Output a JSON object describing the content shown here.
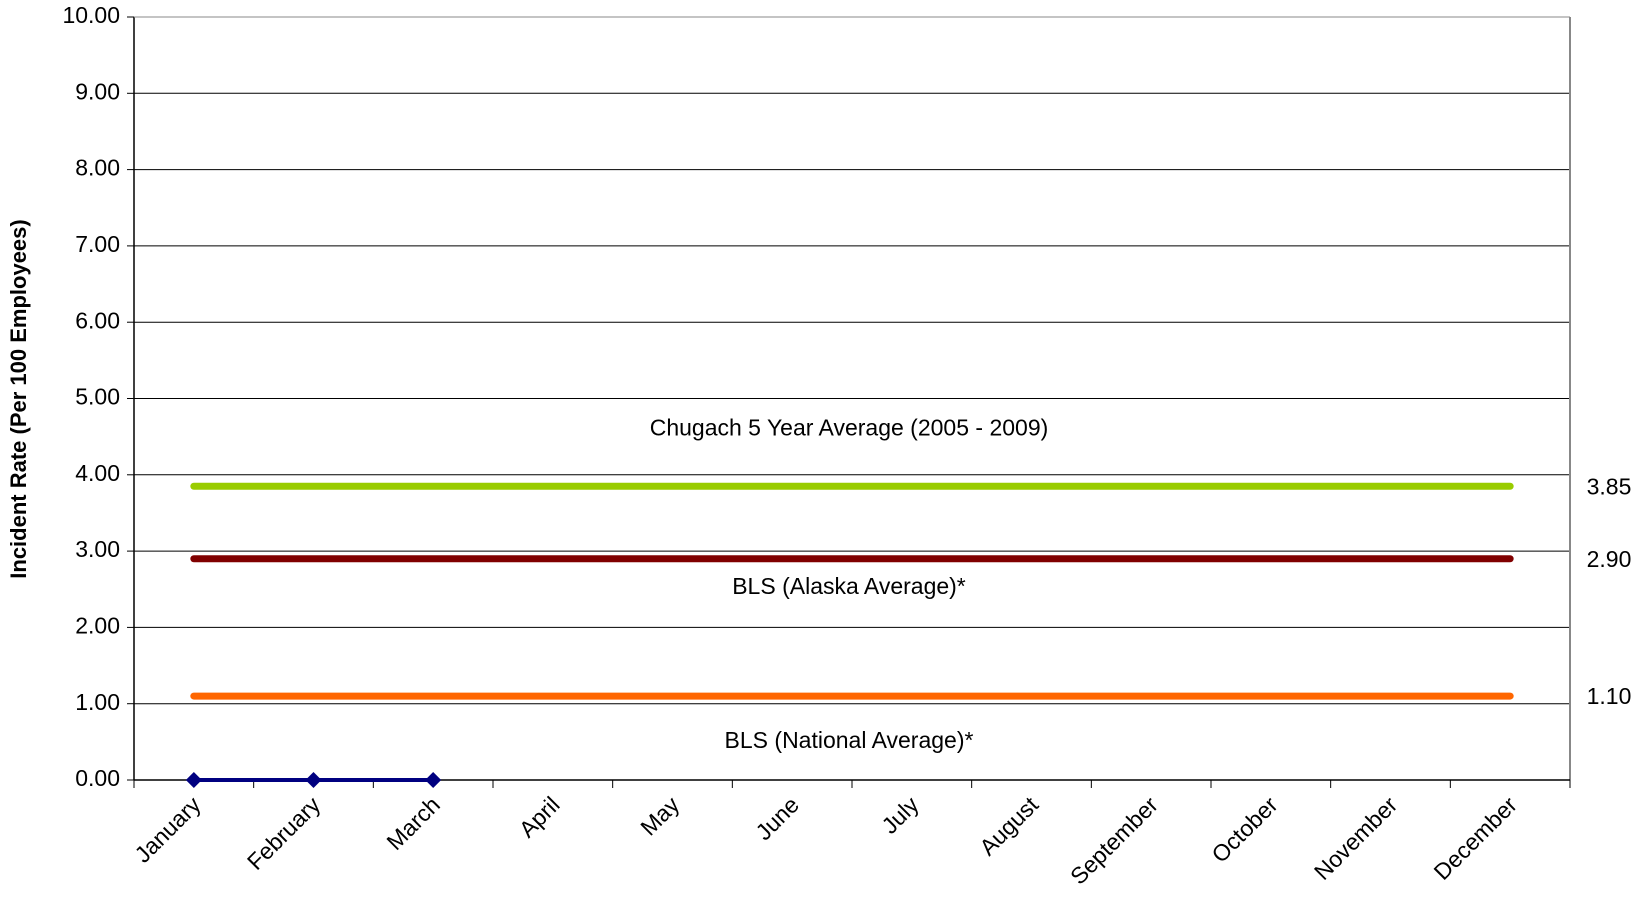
{
  "chart_data": {
    "type": "line",
    "y_label": "Incident Rate (Per 100 Employees)",
    "categories": [
      "January",
      "February",
      "March",
      "April",
      "May",
      "June",
      "July",
      "August",
      "September",
      "October",
      "November",
      "December"
    ],
    "ylim": [
      0,
      10
    ],
    "yticks": [
      {
        "value": 0,
        "label": "0.00"
      },
      {
        "value": 1,
        "label": "1.00"
      },
      {
        "value": 2,
        "label": "2.00"
      },
      {
        "value": 3,
        "label": "3.00"
      },
      {
        "value": 4,
        "label": "4.00"
      },
      {
        "value": 5,
        "label": "5.00"
      },
      {
        "value": 6,
        "label": "6.00"
      },
      {
        "value": 7,
        "label": "7.00"
      },
      {
        "value": 8,
        "label": "8.00"
      },
      {
        "value": 9,
        "label": "9.00"
      },
      {
        "value": 10,
        "label": "10.00"
      }
    ],
    "grid": true,
    "series": [
      {
        "name": "Chugach 5 Year Average (2005 - 2009)",
        "color": "#99cc00",
        "value_label": "3.85",
        "values": [
          3.85,
          3.85,
          3.85,
          3.85,
          3.85,
          3.85,
          3.85,
          3.85,
          3.85,
          3.85,
          3.85,
          3.85
        ]
      },
      {
        "name": "BLS (Alaska Average)*",
        "color": "#800000",
        "value_label": "2.90",
        "values": [
          2.9,
          2.9,
          2.9,
          2.9,
          2.9,
          2.9,
          2.9,
          2.9,
          2.9,
          2.9,
          2.9,
          2.9
        ]
      },
      {
        "name": "BLS (National Average)*",
        "color": "#ff6600",
        "value_label": "1.10",
        "values": [
          1.1,
          1.1,
          1.1,
          1.1,
          1.1,
          1.1,
          1.1,
          1.1,
          1.1,
          1.1,
          1.1,
          1.1
        ]
      },
      {
        "color": "#000080",
        "markers": true,
        "values": [
          0,
          0,
          0,
          null,
          null,
          null,
          null,
          null,
          null,
          null,
          null,
          null
        ]
      }
    ]
  }
}
